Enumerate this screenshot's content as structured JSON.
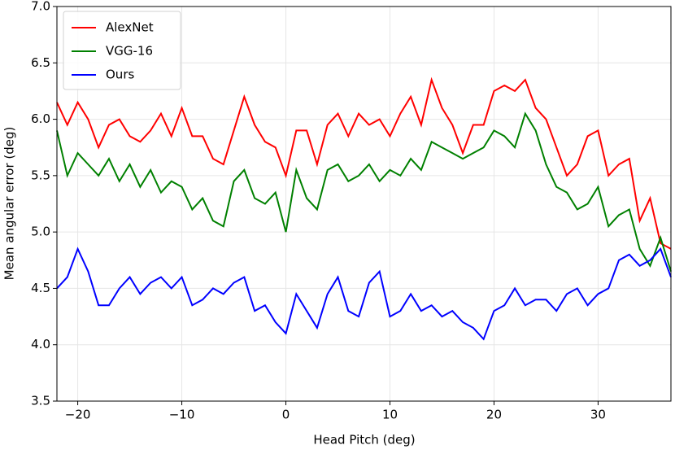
{
  "chart_data": {
    "type": "line",
    "xlabel": "Head Pitch (deg)",
    "ylabel": "Mean angular error (deg)",
    "x": [
      -22,
      -21,
      -20,
      -19,
      -18,
      -17,
      -16,
      -15,
      -14,
      -13,
      -12,
      -11,
      -10,
      -9,
      -8,
      -7,
      -6,
      -5,
      -4,
      -3,
      -2,
      -1,
      0,
      1,
      2,
      3,
      4,
      5,
      6,
      7,
      8,
      9,
      10,
      11,
      12,
      13,
      14,
      15,
      16,
      17,
      18,
      19,
      20,
      21,
      22,
      23,
      24,
      25,
      26,
      27,
      28,
      29,
      30,
      31,
      32,
      33,
      34,
      35,
      36,
      37
    ],
    "series": [
      {
        "name": "AlexNet",
        "color": "#ff0000",
        "values": [
          6.15,
          5.95,
          6.15,
          6.0,
          5.75,
          5.95,
          6.0,
          5.85,
          5.8,
          5.9,
          6.05,
          5.85,
          6.1,
          5.85,
          5.85,
          5.65,
          5.6,
          5.9,
          6.2,
          5.95,
          5.8,
          5.75,
          5.5,
          5.9,
          5.9,
          5.6,
          5.95,
          6.05,
          5.85,
          6.05,
          5.95,
          6.0,
          5.85,
          6.05,
          6.2,
          5.95,
          6.35,
          6.1,
          5.95,
          5.7,
          5.95,
          5.95,
          6.25,
          6.3,
          6.25,
          6.35,
          6.1,
          6.0,
          5.75,
          5.5,
          5.6,
          5.85,
          5.9,
          5.5,
          5.6,
          5.65,
          5.1,
          5.3,
          4.9,
          4.85
        ]
      },
      {
        "name": "VGG-16",
        "color": "#008000",
        "values": [
          5.9,
          5.5,
          5.7,
          5.6,
          5.5,
          5.65,
          5.45,
          5.6,
          5.4,
          5.55,
          5.35,
          5.45,
          5.4,
          5.2,
          5.3,
          5.1,
          5.05,
          5.45,
          5.55,
          5.3,
          5.25,
          5.35,
          5.0,
          5.55,
          5.3,
          5.2,
          5.55,
          5.6,
          5.45,
          5.5,
          5.6,
          5.45,
          5.55,
          5.5,
          5.65,
          5.55,
          5.8,
          5.75,
          5.7,
          5.65,
          5.7,
          5.75,
          5.9,
          5.85,
          5.75,
          6.05,
          5.9,
          5.6,
          5.4,
          5.35,
          5.2,
          5.25,
          5.4,
          5.05,
          5.15,
          5.2,
          4.85,
          4.7,
          4.95,
          4.65
        ]
      },
      {
        "name": "Ours",
        "color": "#0000ff",
        "values": [
          4.5,
          4.6,
          4.85,
          4.65,
          4.35,
          4.35,
          4.5,
          4.6,
          4.45,
          4.55,
          4.6,
          4.5,
          4.6,
          4.35,
          4.4,
          4.5,
          4.45,
          4.55,
          4.6,
          4.3,
          4.35,
          4.2,
          4.1,
          4.45,
          4.3,
          4.15,
          4.45,
          4.6,
          4.3,
          4.25,
          4.55,
          4.65,
          4.25,
          4.3,
          4.45,
          4.3,
          4.35,
          4.25,
          4.3,
          4.2,
          4.15,
          4.05,
          4.3,
          4.35,
          4.5,
          4.35,
          4.4,
          4.4,
          4.3,
          4.45,
          4.5,
          4.35,
          4.45,
          4.5,
          4.75,
          4.8,
          4.7,
          4.75,
          4.85,
          4.6
        ]
      }
    ],
    "xlim": [
      -22,
      37
    ],
    "xticks": [
      {
        "value": -20,
        "label": "−20"
      },
      {
        "value": -10,
        "label": "−10"
      },
      0,
      10,
      20,
      30
    ],
    "ylim": [
      3.5,
      7.0
    ],
    "yticks": [
      3.5,
      {
        "value": 4,
        "label": "4.0"
      },
      4.5,
      {
        "value": 5,
        "label": "5.0"
      },
      5.5,
      {
        "value": 6,
        "label": "6.0"
      },
      6.5,
      {
        "value": 7,
        "label": "7.0"
      }
    ],
    "grid": true,
    "legend": "upper-left"
  }
}
